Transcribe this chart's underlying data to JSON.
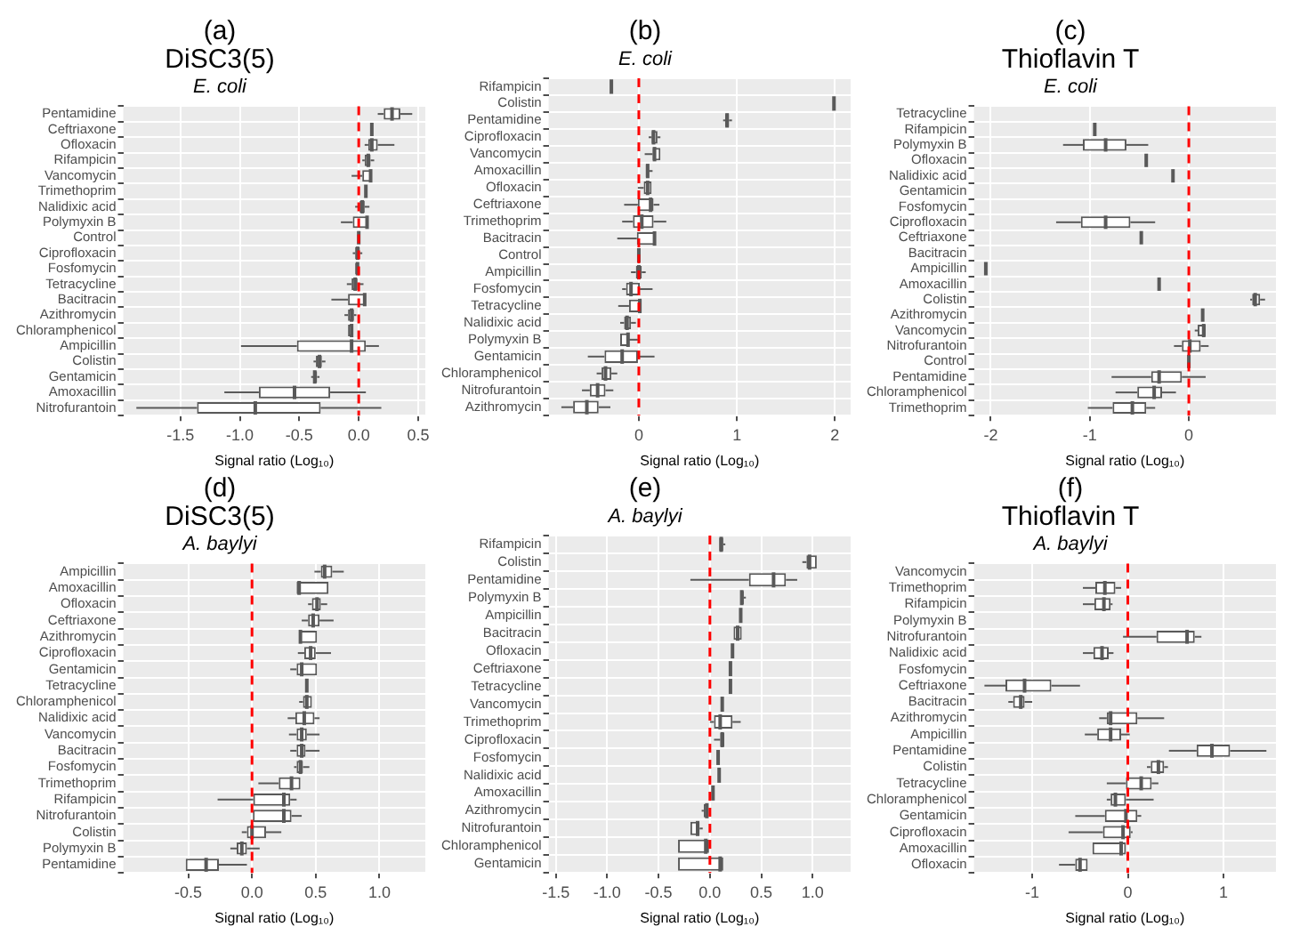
{
  "chart_data": [
    {
      "type": "box",
      "title": "(a)\nDiSC3(5)",
      "subtitle": "E. coli",
      "xlabel": "Signal ratio (Log₁₀)",
      "orientation": "horizontal",
      "grid": true,
      "color": "#595959",
      "xlim": [
        -1.98,
        0.56
      ],
      "xticks": [
        -1.5,
        {
          "value": -1,
          "label": "-1.0"
        },
        -0.5,
        {
          "value": 0,
          "label": "0.0"
        },
        0.5
      ],
      "ref_lines": [
        {
          "axis": "x",
          "value": 0,
          "color": "#ff0000",
          "line_style": "dashed"
        }
      ],
      "categories": [
        "Pentamidine",
        "Ceftriaxone",
        "Ofloxacin",
        "Rifampicin",
        "Vancomycin",
        "Trimethoprim",
        "Nalidixic acid",
        "Polymyxin B",
        "Control",
        "Ciprofloxacin",
        "Fosfomycin",
        "Tetracycline",
        "Bacitracin",
        "Azithromycin",
        "Chloramphenicol",
        "Ampicillin",
        "Colistin",
        "Gentamicin",
        "Amoxacillin",
        "Nitrofurantoin"
      ],
      "boxes": [
        {
          "low": 0.16,
          "q1": 0.21,
          "median": 0.28,
          "q3": 0.35,
          "high": 0.45
        },
        {
          "low": 0.11,
          "q1": 0.11,
          "median": 0.11,
          "q3": 0.11,
          "high": 0.11
        },
        {
          "low": 0.05,
          "q1": 0.08,
          "median": 0.11,
          "q3": 0.16,
          "high": 0.3
        },
        {
          "low": 0.03,
          "q1": 0.05,
          "median": 0.08,
          "q3": 0.1,
          "high": 0.13
        },
        {
          "low": -0.06,
          "q1": 0.03,
          "median": 0.1,
          "q3": 0.11,
          "high": 0.11
        },
        {
          "low": 0.04,
          "q1": 0.05,
          "median": 0.06,
          "q3": 0.07,
          "high": 0.08
        },
        {
          "low": -0.03,
          "q1": 0,
          "median": 0.03,
          "q3": 0.05,
          "high": 0.09
        },
        {
          "low": -0.15,
          "q1": -0.05,
          "median": 0.07,
          "q3": 0.08,
          "high": 0.08
        },
        {
          "low": 0,
          "q1": 0,
          "median": 0,
          "q3": 0,
          "high": 0
        },
        {
          "low": -0.05,
          "q1": -0.03,
          "median": -0.01,
          "q3": 0.01,
          "high": 0.03
        },
        {
          "low": -0.04,
          "q1": -0.03,
          "median": -0.01,
          "q3": 0,
          "high": 0.01
        },
        {
          "low": -0.1,
          "q1": -0.06,
          "median": -0.03,
          "q3": -0.01,
          "high": 0.04
        },
        {
          "low": -0.23,
          "q1": -0.09,
          "median": 0.05,
          "q3": 0.06,
          "high": 0.06
        },
        {
          "low": -0.12,
          "q1": -0.09,
          "median": -0.06,
          "q3": -0.04,
          "high": -0.02
        },
        {
          "low": -0.1,
          "q1": -0.09,
          "median": -0.06,
          "q3": -0.05,
          "high": -0.04
        },
        {
          "low": -0.99,
          "q1": -0.52,
          "median": -0.06,
          "q3": 0.06,
          "high": 0.17
        },
        {
          "low": -0.38,
          "q1": -0.36,
          "median": -0.33,
          "q3": -0.31,
          "high": -0.28
        },
        {
          "low": -0.4,
          "q1": -0.38,
          "median": -0.37,
          "q3": -0.35,
          "high": -0.33
        },
        {
          "low": -1.13,
          "q1": -0.84,
          "median": -0.54,
          "q3": -0.24,
          "high": 0.06
        },
        {
          "low": -1.87,
          "q1": -1.36,
          "median": -0.87,
          "q3": -0.32,
          "high": 0.19
        }
      ]
    },
    {
      "type": "box",
      "title": "(b)",
      "subtitle": "E. coli",
      "xlabel": "Signal ratio (Log₁₀)",
      "orientation": "horizontal",
      "grid": true,
      "color": "#595959",
      "xlim": [
        -0.92,
        2.16
      ],
      "xticks": [
        0,
        1,
        2
      ],
      "ref_lines": [
        {
          "axis": "x",
          "value": 0,
          "color": "#ff0000",
          "line_style": "dashed"
        }
      ],
      "categories": [
        "Rifampicin",
        "Colistin",
        "Pentamidine",
        "Ciprofloxacin",
        "Vancomycin",
        "Amoxacillin",
        "Ofloxacin",
        "Ceftriaxone",
        "Trimethoprim",
        "Bacitracin",
        "Control",
        "Ampicillin",
        "Fosfomycin",
        "Tetracycline",
        "Nalidixic acid",
        "Polymyxin B",
        "Gentamicin",
        "Chloramphenicol",
        "Nitrofurantoin",
        "Azithromycin"
      ],
      "boxes": [
        {
          "low": -0.28,
          "q1": -0.28,
          "median": -0.28,
          "q3": -0.28,
          "high": -0.28
        },
        {
          "low": 1.98,
          "q1": 1.98,
          "median": 1.99,
          "q3": 2,
          "high": 2
        },
        {
          "low": 0.86,
          "q1": 0.88,
          "median": 0.9,
          "q3": 0.92,
          "high": 0.95
        },
        {
          "low": 0.1,
          "q1": 0.13,
          "median": 0.15,
          "q3": 0.19,
          "high": 0.22
        },
        {
          "low": 0.06,
          "q1": 0.14,
          "median": 0.16,
          "q3": 0.22,
          "high": 0.22
        },
        {
          "low": 0.06,
          "q1": 0.07,
          "median": 0.09,
          "q3": 0.1,
          "high": 0.14
        },
        {
          "low": -0.01,
          "q1": 0.05,
          "median": 0.09,
          "q3": 0.13,
          "high": 0.14
        },
        {
          "low": -0.15,
          "q1": -0.01,
          "median": 0.12,
          "q3": 0.15,
          "high": 0.21
        },
        {
          "low": -0.17,
          "q1": -0.06,
          "median": 0.03,
          "q3": 0.15,
          "high": 0.28
        },
        {
          "low": -0.22,
          "q1": -0.02,
          "median": 0.16,
          "q3": 0.17,
          "high": 0.17
        },
        {
          "low": 0,
          "q1": 0,
          "median": 0,
          "q3": 0,
          "high": 0
        },
        {
          "low": -0.08,
          "q1": -0.03,
          "median": 0,
          "q3": 0.03,
          "high": 0.07
        },
        {
          "low": -0.17,
          "q1": -0.13,
          "median": -0.08,
          "q3": 0.01,
          "high": 0.14
        },
        {
          "low": -0.21,
          "q1": -0.1,
          "median": 0.01,
          "q3": 0.03,
          "high": 0.03
        },
        {
          "low": -0.19,
          "q1": -0.15,
          "median": -0.12,
          "q3": -0.08,
          "high": -0.03
        },
        {
          "low": -0.19,
          "q1": -0.19,
          "median": -0.11,
          "q3": -0.1,
          "high": -0.01
        },
        {
          "low": -0.52,
          "q1": -0.35,
          "median": -0.17,
          "q3": 0,
          "high": 0.16
        },
        {
          "low": -0.43,
          "q1": -0.38,
          "median": -0.34,
          "q3": -0.28,
          "high": -0.22
        },
        {
          "low": -0.58,
          "q1": -0.5,
          "median": -0.42,
          "q3": -0.34,
          "high": -0.26
        },
        {
          "low": -0.79,
          "q1": -0.67,
          "median": -0.53,
          "q3": -0.41,
          "high": -0.29
        }
      ]
    },
    {
      "type": "box",
      "title": "(c)\nThioflavin T",
      "subtitle": "E. coli",
      "xlabel": "Signal ratio (Log₁₀)",
      "orientation": "horizontal",
      "grid": true,
      "color": "#595959",
      "xlim": [
        -2.17,
        0.88
      ],
      "xticks": [
        -2,
        -1,
        0
      ],
      "ref_lines": [
        {
          "axis": "x",
          "value": 0,
          "color": "#ff0000",
          "line_style": "dashed"
        }
      ],
      "categories": [
        "Tetracycline",
        "Rifampicin",
        "Polymyxin B",
        "Ofloxacin",
        "Nalidixic acid",
        "Gentamicin",
        "Fosfomycin",
        "Ciprofloxacin",
        "Ceftriaxone",
        "Bacitracin",
        "Ampicillin",
        "Amoxacillin",
        "Colistin",
        "Azithromycin",
        "Vancomycin",
        "Nitrofurantoin",
        "Control",
        "Pentamidine",
        "Chloramphenicol",
        "Trimethoprim"
      ],
      "boxes": [
        null,
        {
          "low": -0.95,
          "q1": -0.95,
          "median": -0.95,
          "q3": -0.95,
          "high": -0.95
        },
        {
          "low": -1.27,
          "q1": -1.07,
          "median": -0.84,
          "q3": -0.63,
          "high": -0.41
        },
        {
          "low": -0.43,
          "q1": -0.43,
          "median": -0.43,
          "q3": -0.43,
          "high": -0.43
        },
        {
          "low": -0.16,
          "q1": -0.16,
          "median": -0.16,
          "q3": -0.16,
          "high": -0.16
        },
        null,
        null,
        {
          "low": -1.34,
          "q1": -1.09,
          "median": -0.84,
          "q3": -0.59,
          "high": -0.34
        },
        {
          "low": -0.48,
          "q1": -0.48,
          "median": -0.48,
          "q3": -0.48,
          "high": -0.48
        },
        null,
        {
          "low": -2.05,
          "q1": -2.05,
          "median": -2.05,
          "q3": -2.05,
          "high": -2.05
        },
        {
          "low": -0.3,
          "q1": -0.3,
          "median": -0.3,
          "q3": -0.3,
          "high": -0.3
        },
        {
          "low": 0.62,
          "q1": 0.64,
          "median": 0.67,
          "q3": 0.72,
          "high": 0.77
        },
        {
          "low": 0.12,
          "q1": 0.13,
          "median": 0.14,
          "q3": 0.15,
          "high": 0.16
        },
        {
          "low": 0.06,
          "q1": 0.09,
          "median": 0.15,
          "q3": 0.17,
          "high": 0.17
        },
        {
          "low": -0.15,
          "q1": -0.07,
          "median": 0.01,
          "q3": 0.12,
          "high": 0.2
        },
        {
          "low": 0,
          "q1": 0,
          "median": 0,
          "q3": 0,
          "high": 0
        },
        {
          "low": -0.78,
          "q1": -0.38,
          "median": -0.3,
          "q3": -0.07,
          "high": 0.17
        },
        {
          "low": -0.74,
          "q1": -0.52,
          "median": -0.35,
          "q3": -0.27,
          "high": -0.13
        },
        {
          "low": -1.02,
          "q1": -0.77,
          "median": -0.57,
          "q3": -0.43,
          "high": -0.34
        }
      ]
    },
    {
      "type": "box",
      "title": "(d)\nDiSC3(5)",
      "subtitle": "A. baylyi",
      "xlabel": "Signal ratio (Log₁₀)",
      "orientation": "horizontal",
      "grid": true,
      "color": "#595959",
      "xlim": [
        -1.01,
        1.36
      ],
      "xticks": [
        -0.5,
        {
          "value": 0,
          "label": "0.0"
        },
        0.5,
        {
          "value": 1,
          "label": "1.0"
        }
      ],
      "ref_lines": [
        {
          "axis": "x",
          "value": 0,
          "color": "#ff0000",
          "line_style": "dashed"
        }
      ],
      "categories": [
        "Ampicillin",
        "Amoxacillin",
        "Ofloxacin",
        "Ceftriaxone",
        "Azithromycin",
        "Ciprofloxacin",
        "Gentamicin",
        "Tetracycline",
        "Chloramphenicol",
        "Nalidixic acid",
        "Vancomycin",
        "Bacitracin",
        "Fosfomycin",
        "Trimethoprim",
        "Rifampicin",
        "Nitrofurantoin",
        "Colistin",
        "Polymyxin B",
        "Pentamidine"
      ],
      "boxes": [
        {
          "low": 0.49,
          "q1": 0.54,
          "median": 0.57,
          "q3": 0.63,
          "high": 0.72
        },
        {
          "low": 0.35,
          "q1": 0.35,
          "median": 0.37,
          "q3": 0.6,
          "high": 0.6
        },
        {
          "low": 0.44,
          "q1": 0.47,
          "median": 0.51,
          "q3": 0.54,
          "high": 0.59
        },
        {
          "low": 0.39,
          "q1": 0.44,
          "median": 0.48,
          "q3": 0.53,
          "high": 0.64
        },
        {
          "low": 0.36,
          "q1": 0.37,
          "median": 0.38,
          "q3": 0.51,
          "high": 0.51
        },
        {
          "low": 0.36,
          "q1": 0.41,
          "median": 0.46,
          "q3": 0.5,
          "high": 0.62
        },
        {
          "low": 0.3,
          "q1": 0.35,
          "median": 0.39,
          "q3": 0.51,
          "high": 0.51
        },
        {
          "low": 0.41,
          "q1": 0.42,
          "median": 0.43,
          "q3": 0.44,
          "high": 0.45
        },
        {
          "low": 0.37,
          "q1": 0.4,
          "median": 0.43,
          "q3": 0.47,
          "high": 0.48
        },
        {
          "low": 0.28,
          "q1": 0.34,
          "median": 0.41,
          "q3": 0.49,
          "high": 0.53
        },
        {
          "low": 0.29,
          "q1": 0.35,
          "median": 0.39,
          "q3": 0.43,
          "high": 0.53
        },
        {
          "low": 0.3,
          "q1": 0.35,
          "median": 0.39,
          "q3": 0.42,
          "high": 0.53
        },
        {
          "low": 0.33,
          "q1": 0.35,
          "median": 0.38,
          "q3": 0.4,
          "high": 0.45
        },
        {
          "low": 0.05,
          "q1": 0.21,
          "median": 0.31,
          "q3": 0.38,
          "high": 0.38
        },
        {
          "low": -0.27,
          "q1": 0.01,
          "median": 0.25,
          "q3": 0.3,
          "high": 0.35
        },
        {
          "low": 0,
          "q1": 0,
          "median": 0.25,
          "q3": 0.31,
          "high": 0.39
        },
        {
          "low": -0.08,
          "q1": -0.04,
          "median": 0,
          "q3": 0.11,
          "high": 0.23
        },
        {
          "low": -0.17,
          "q1": -0.12,
          "median": -0.08,
          "q3": -0.04,
          "high": 0.06
        },
        {
          "low": -0.52,
          "q1": -0.52,
          "median": -0.36,
          "q3": -0.26,
          "high": -0.04
        }
      ]
    },
    {
      "type": "box",
      "title": "(e)",
      "subtitle": "A. baylyi",
      "xlabel": "Signal ratio (Log₁₀)",
      "orientation": "horizontal",
      "grid": true,
      "color": "#595959",
      "xlim": [
        -1.57,
        1.37
      ],
      "xticks": [
        -1.5,
        {
          "value": -1,
          "label": "-1.0"
        },
        -0.5,
        {
          "value": 0,
          "label": "0.0"
        },
        0.5,
        {
          "value": 1,
          "label": "1.0"
        }
      ],
      "ref_lines": [
        {
          "axis": "x",
          "value": 0,
          "color": "#ff0000",
          "line_style": "dashed"
        }
      ],
      "categories": [
        "Rifampicin",
        "Colistin",
        "Pentamidine",
        "Polymyxin B",
        "Ampicillin",
        "Bacitracin",
        "Ofloxacin",
        "Ceftriaxone",
        "Tetracycline",
        "Vancomycin",
        "Trimethoprim",
        "Ciprofloxacin",
        "Fosfomycin",
        "Nalidixic acid",
        "Amoxacillin",
        "Azithromycin",
        "Nitrofurantoin",
        "Chloramphenicol",
        "Gentamicin"
      ],
      "boxes": [
        {
          "low": 0.08,
          "q1": 0.09,
          "median": 0.11,
          "q3": 0.13,
          "high": 0.15
        },
        {
          "low": 0.9,
          "q1": 0.94,
          "median": 0.97,
          "q3": 1.04,
          "high": 1.04
        },
        {
          "low": -0.19,
          "q1": 0.38,
          "median": 0.62,
          "q3": 0.74,
          "high": 0.85
        },
        {
          "low": 0.29,
          "q1": 0.3,
          "median": 0.31,
          "q3": 0.33,
          "high": 0.35
        },
        {
          "low": 0.28,
          "q1": 0.29,
          "median": 0.3,
          "q3": 0.31,
          "high": 0.32
        },
        {
          "low": 0.22,
          "q1": 0.23,
          "median": 0.27,
          "q3": 0.31,
          "high": 0.31
        },
        {
          "low": 0.2,
          "q1": 0.21,
          "median": 0.22,
          "q3": 0.23,
          "high": 0.24
        },
        {
          "low": 0.18,
          "q1": 0.19,
          "median": 0.2,
          "q3": 0.21,
          "high": 0.22
        },
        {
          "low": 0.2,
          "q1": 0.2,
          "median": 0.2,
          "q3": 0.2,
          "high": 0.2
        },
        {
          "low": 0.12,
          "q1": 0.12,
          "median": 0.12,
          "q3": 0.12,
          "high": 0.12
        },
        {
          "low": 0,
          "q1": 0.04,
          "median": 0.1,
          "q3": 0.22,
          "high": 0.3
        },
        {
          "low": 0.04,
          "q1": 0.1,
          "median": 0.12,
          "q3": 0.14,
          "high": 0.15
        },
        {
          "low": 0.06,
          "q1": 0.07,
          "median": 0.08,
          "q3": 0.09,
          "high": 0.1
        },
        {
          "low": 0.09,
          "q1": 0.09,
          "median": 0.09,
          "q3": 0.09,
          "high": 0.09
        },
        {
          "low": 0.01,
          "q1": 0.02,
          "median": 0.03,
          "q3": 0.04,
          "high": 0.04
        },
        {
          "low": -0.08,
          "q1": -0.06,
          "median": -0.03,
          "q3": -0.02,
          "high": -0.01
        },
        {
          "low": -0.2,
          "q1": -0.19,
          "median": -0.12,
          "q3": -0.1,
          "high": -0.07
        },
        {
          "low": -0.31,
          "q1": -0.31,
          "median": -0.04,
          "q3": 0,
          "high": 0
        },
        {
          "low": -0.31,
          "q1": -0.31,
          "median": 0.1,
          "q3": 0.13,
          "high": 0.13
        }
      ]
    },
    {
      "type": "box",
      "title": "(f)\nThioflavin T",
      "subtitle": "A. baylyi",
      "xlabel": "Signal ratio (Log₁₀)",
      "orientation": "horizontal",
      "grid": true,
      "color": "#595959",
      "xlim": [
        -1.61,
        1.55
      ],
      "xticks": [
        -1,
        0,
        1
      ],
      "ref_lines": [
        {
          "axis": "x",
          "value": 0,
          "color": "#ff0000",
          "line_style": "dashed"
        }
      ],
      "categories": [
        "Vancomycin",
        "Trimethoprim",
        "Rifampicin",
        "Polymyxin B",
        "Nitrofurantoin",
        "Nalidixic acid",
        "Fosfomycin",
        "Ceftriaxone",
        "Bacitracin",
        "Azithromycin",
        "Ampicillin",
        "Pentamidine",
        "Colistin",
        "Tetracycline",
        "Chloramphenicol",
        "Gentamicin",
        "Ciprofloxacin",
        "Amoxacillin",
        "Ofloxacin"
      ],
      "boxes": [
        null,
        {
          "low": -0.47,
          "q1": -0.34,
          "median": -0.24,
          "q3": -0.13,
          "high": -0.07
        },
        {
          "low": -0.47,
          "q1": -0.35,
          "median": -0.25,
          "q3": -0.18,
          "high": -0.16
        },
        null,
        {
          "low": -0.05,
          "q1": 0.3,
          "median": 0.62,
          "q3": 0.7,
          "high": 0.77
        },
        {
          "low": -0.47,
          "q1": -0.36,
          "median": -0.27,
          "q3": -0.2,
          "high": -0.15
        },
        null,
        {
          "low": -1.5,
          "q1": -1.28,
          "median": -1.08,
          "q3": -0.8,
          "high": -0.5
        },
        {
          "low": -1.25,
          "q1": -1.2,
          "median": -1.12,
          "q3": -1.08,
          "high": -1
        },
        {
          "low": -0.3,
          "q1": -0.22,
          "median": -0.18,
          "q3": 0.1,
          "high": 0.38
        },
        {
          "low": -0.45,
          "q1": -0.32,
          "median": -0.18,
          "q3": -0.07,
          "high": 0.02
        },
        {
          "low": 0.43,
          "q1": 0.72,
          "median": 0.88,
          "q3": 1.07,
          "high": 1.45
        },
        {
          "low": 0.2,
          "q1": 0.24,
          "median": 0.32,
          "q3": 0.38,
          "high": 0.42
        },
        {
          "low": -0.22,
          "q1": -0.02,
          "median": 0.14,
          "q3": 0.25,
          "high": 0.32
        },
        {
          "low": -0.22,
          "q1": -0.18,
          "median": -0.13,
          "q3": -0.02,
          "high": 0.27
        },
        {
          "low": -0.55,
          "q1": -0.24,
          "median": -0.02,
          "q3": 0.1,
          "high": 0.14
        },
        {
          "low": -0.62,
          "q1": -0.26,
          "median": -0.05,
          "q3": 0.03,
          "high": 0.05
        },
        {
          "low": -0.37,
          "q1": -0.37,
          "median": -0.07,
          "q3": -0.02,
          "high": -0.02
        },
        {
          "low": -0.72,
          "q1": -0.55,
          "median": -0.5,
          "q3": -0.42,
          "high": -0.42
        }
      ]
    }
  ]
}
